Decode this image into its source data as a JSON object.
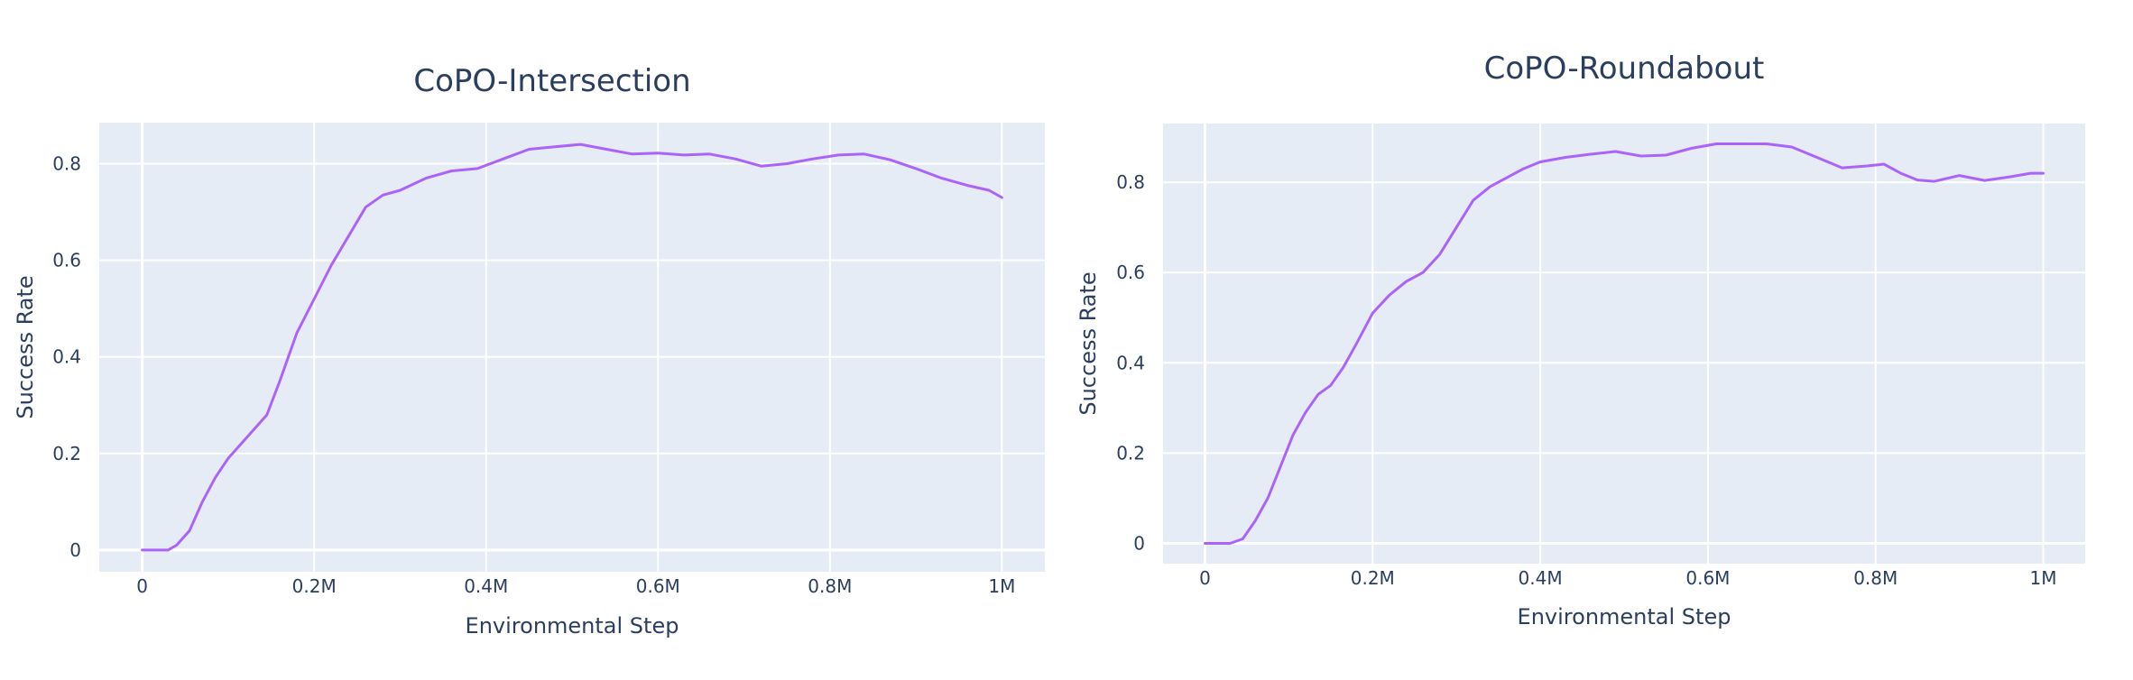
{
  "chart_data": [
    {
      "type": "line",
      "title": "CoPO-Intersection",
      "xlabel": "Environmental Step",
      "ylabel": "Success Rate",
      "xlim": [
        -50000,
        1050000
      ],
      "ylim": [
        -0.045,
        0.885
      ],
      "x_ticks": [
        0,
        200000,
        400000,
        600000,
        800000,
        1000000
      ],
      "x_tick_labels": [
        "0",
        "0.2M",
        "0.4M",
        "0.6M",
        "0.8M",
        "1M"
      ],
      "y_ticks": [
        0,
        0.2,
        0.4,
        0.6,
        0.8
      ],
      "y_tick_labels": [
        "0",
        "0.2",
        "0.4",
        "0.6",
        "0.8"
      ],
      "grid": true,
      "line_color": "#ab63fa",
      "plot_bg": "#e5ecf6",
      "series": [
        {
          "x": [
            0,
            30000,
            40000,
            55000,
            70000,
            85000,
            100000,
            120000,
            145000,
            160000,
            180000,
            200000,
            220000,
            240000,
            260000,
            280000,
            300000,
            330000,
            360000,
            390000,
            420000,
            450000,
            480000,
            510000,
            540000,
            570000,
            600000,
            630000,
            660000,
            690000,
            720000,
            750000,
            780000,
            810000,
            840000,
            870000,
            900000,
            930000,
            960000,
            985000,
            1000000
          ],
          "y": [
            0.0,
            0.0,
            0.01,
            0.04,
            0.1,
            0.15,
            0.19,
            0.23,
            0.28,
            0.35,
            0.45,
            0.52,
            0.59,
            0.65,
            0.71,
            0.735,
            0.745,
            0.77,
            0.785,
            0.79,
            0.81,
            0.83,
            0.835,
            0.84,
            0.83,
            0.82,
            0.822,
            0.818,
            0.82,
            0.81,
            0.795,
            0.8,
            0.81,
            0.818,
            0.82,
            0.808,
            0.79,
            0.77,
            0.755,
            0.745,
            0.73
          ]
        }
      ]
    },
    {
      "type": "line",
      "title": "CoPO-Roundabout",
      "xlabel": "Environmental Step",
      "ylabel": "Success Rate",
      "xlim": [
        -50000,
        1050000
      ],
      "ylim": [
        -0.045,
        0.93
      ],
      "x_ticks": [
        0,
        200000,
        400000,
        600000,
        800000,
        1000000
      ],
      "x_tick_labels": [
        "0",
        "0.2M",
        "0.4M",
        "0.6M",
        "0.8M",
        "1M"
      ],
      "y_ticks": [
        0,
        0.2,
        0.4,
        0.6,
        0.8
      ],
      "y_tick_labels": [
        "0",
        "0.2",
        "0.4",
        "0.6",
        "0.8"
      ],
      "grid": true,
      "line_color": "#ab63fa",
      "plot_bg": "#e5ecf6",
      "series": [
        {
          "x": [
            0,
            30000,
            45000,
            60000,
            75000,
            90000,
            105000,
            120000,
            135000,
            150000,
            165000,
            180000,
            200000,
            220000,
            240000,
            260000,
            280000,
            300000,
            320000,
            340000,
            360000,
            380000,
            400000,
            430000,
            460000,
            490000,
            520000,
            550000,
            580000,
            610000,
            640000,
            670000,
            700000,
            730000,
            760000,
            790000,
            810000,
            830000,
            850000,
            870000,
            900000,
            930000,
            960000,
            985000,
            1000000
          ],
          "y": [
            0.0,
            0.0,
            0.01,
            0.05,
            0.1,
            0.17,
            0.24,
            0.29,
            0.33,
            0.35,
            0.39,
            0.44,
            0.51,
            0.55,
            0.58,
            0.6,
            0.64,
            0.7,
            0.76,
            0.79,
            0.81,
            0.83,
            0.845,
            0.855,
            0.862,
            0.868,
            0.858,
            0.86,
            0.875,
            0.885,
            0.885,
            0.885,
            0.878,
            0.855,
            0.832,
            0.836,
            0.84,
            0.82,
            0.805,
            0.802,
            0.815,
            0.804,
            0.812,
            0.82,
            0.82
          ]
        }
      ]
    }
  ]
}
